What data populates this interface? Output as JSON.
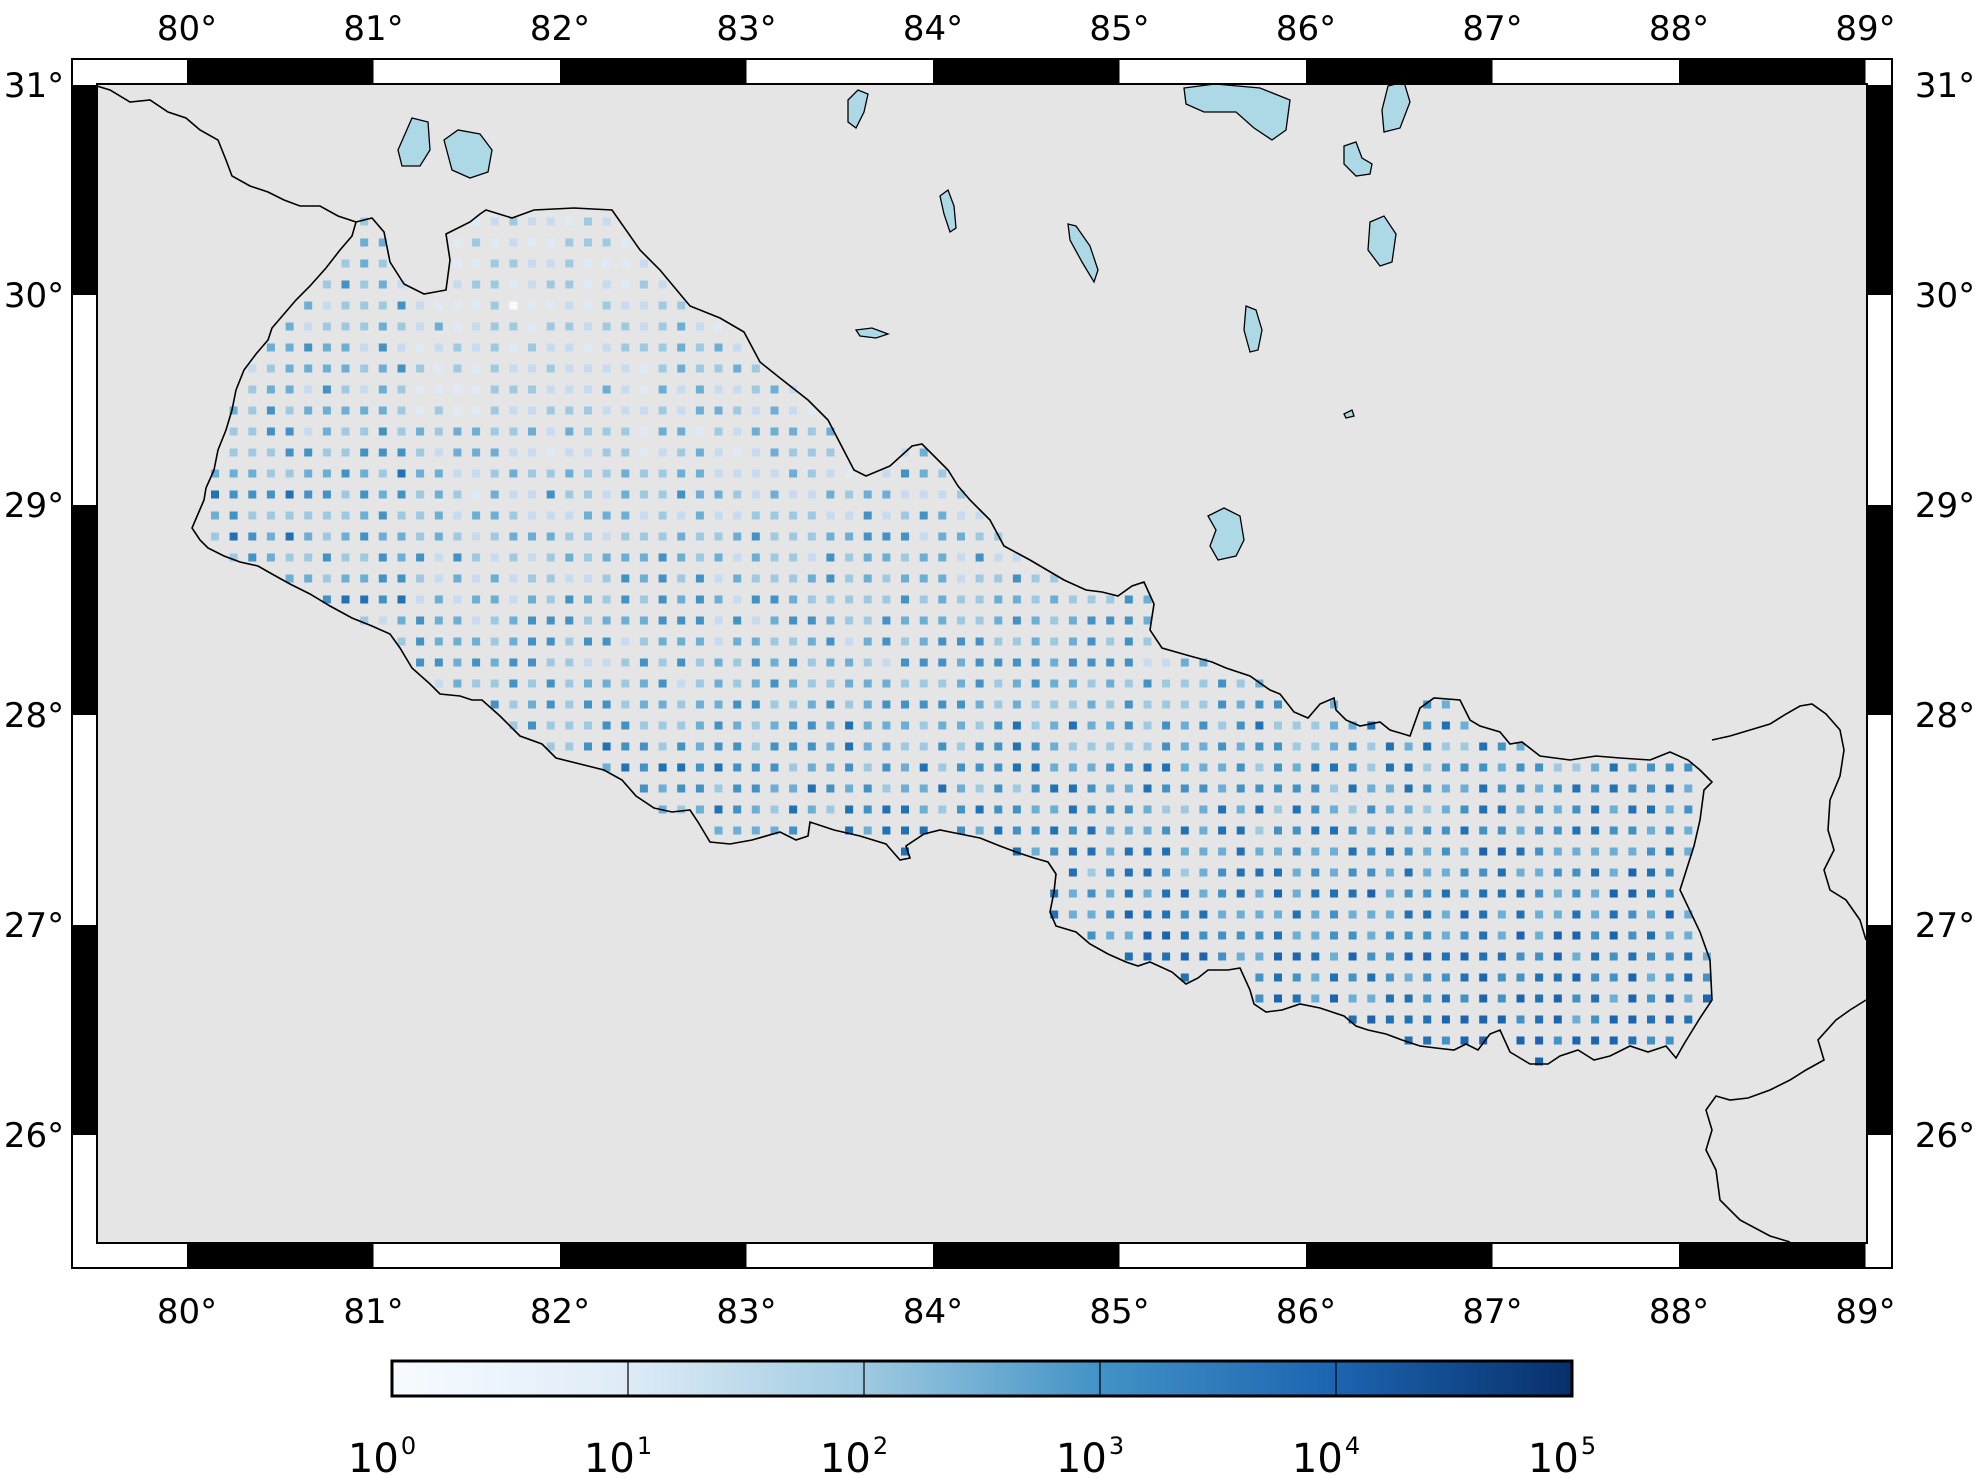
{
  "map": {
    "lon_ticks": [
      {
        "value": 80,
        "label": "80°"
      },
      {
        "value": 81,
        "label": "81°"
      },
      {
        "value": 82,
        "label": "82°"
      },
      {
        "value": 83,
        "label": "83°"
      },
      {
        "value": 84,
        "label": "84°"
      },
      {
        "value": 85,
        "label": "85°"
      },
      {
        "value": 86,
        "label": "86°"
      },
      {
        "value": 87,
        "label": "87°"
      },
      {
        "value": 88,
        "label": "88°"
      },
      {
        "value": 89,
        "label": "89°"
      }
    ],
    "lat_ticks": [
      {
        "value": 31,
        "label": "31°"
      },
      {
        "value": 30,
        "label": "30°"
      },
      {
        "value": 29,
        "label": "29°"
      },
      {
        "value": 28,
        "label": "28°"
      },
      {
        "value": 27,
        "label": "27°"
      },
      {
        "value": 26,
        "label": "26°"
      }
    ],
    "lon_range": [
      79.4,
      89.0
    ],
    "lat_range": [
      25.4,
      31.1
    ],
    "land_color": "#e5e5e5",
    "water_color": "#add8e6",
    "border_color": "#000000"
  },
  "colorbar": {
    "scale": "log",
    "range": [
      1,
      100000
    ],
    "colormap": "Blues",
    "colors": [
      "#f7fbff",
      "#c6dbef",
      "#6baed6",
      "#2171b5",
      "#08306b"
    ],
    "ticks": [
      {
        "base": "10",
        "exp": "0"
      },
      {
        "base": "10",
        "exp": "1"
      },
      {
        "base": "10",
        "exp": "2"
      },
      {
        "base": "10",
        "exp": "3"
      },
      {
        "base": "10",
        "exp": "4"
      },
      {
        "base": "10",
        "exp": "5"
      }
    ]
  },
  "chart_data": {
    "type": "heatmap",
    "region": "Nepal",
    "grid_cell_degrees": 0.1,
    "value_scale": "log",
    "value_range": [
      1,
      100000
    ],
    "x_range": [
      79.4,
      89.0
    ],
    "y_range": [
      25.4,
      31.1
    ]
  }
}
